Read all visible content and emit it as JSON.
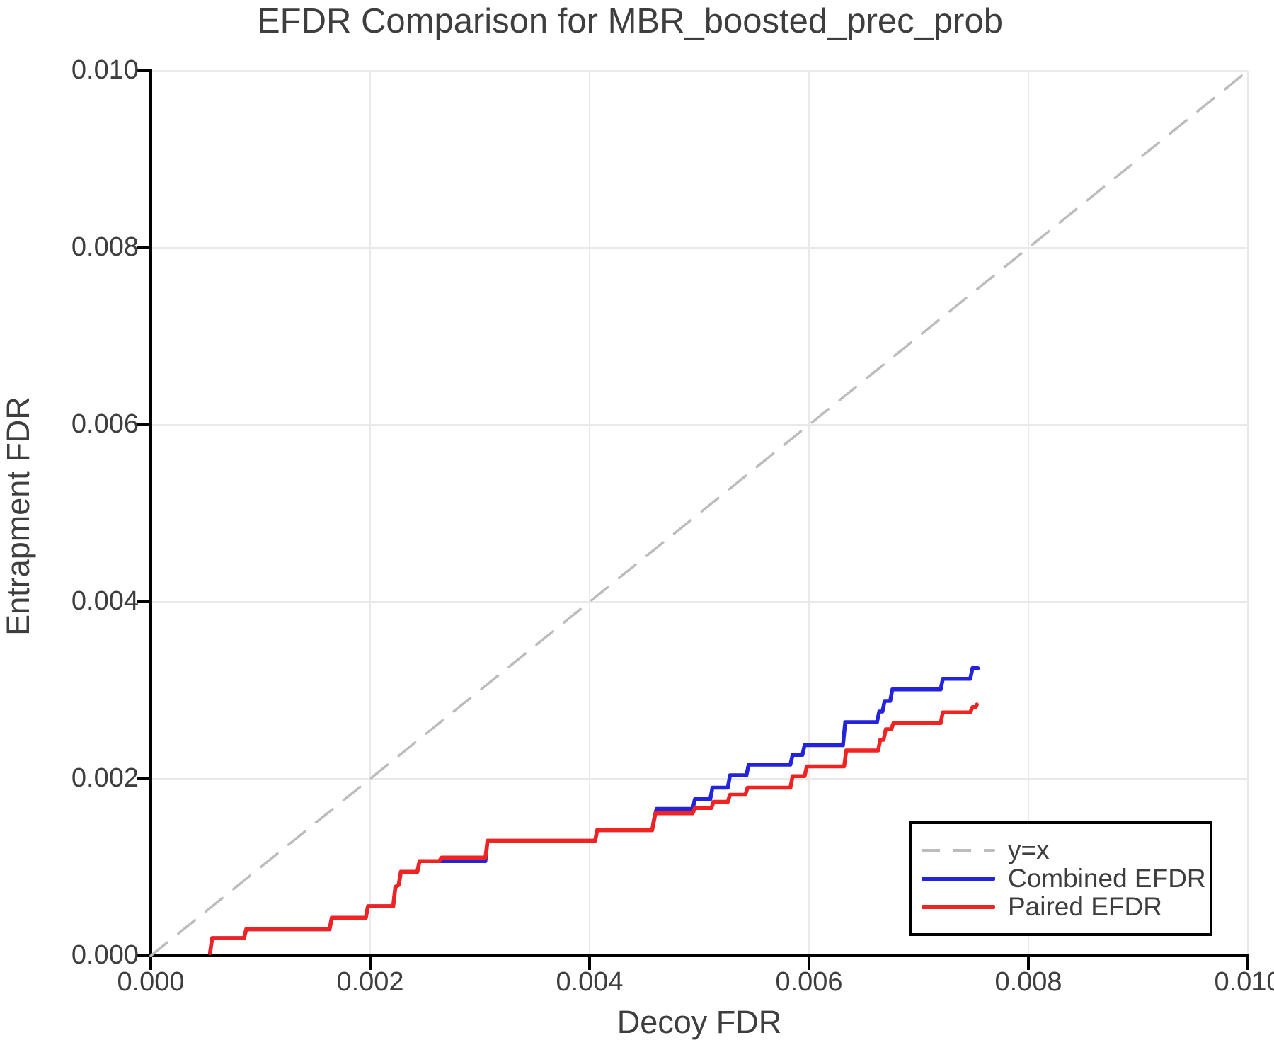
{
  "title": "EFDR Comparison for MBR_boosted_prec_prob",
  "colors": {
    "combined": "#2323dc",
    "paired": "#f02323",
    "identity": "#bcbcbc",
    "grid": "#e9e9e9",
    "axis": "#000000",
    "text": "#3e3e3e"
  },
  "chart_data": {
    "type": "line",
    "title": "EFDR Comparison for MBR_boosted_prec_prob",
    "xlabel": "Decoy FDR",
    "ylabel": "Entrapment FDR",
    "xlim": [
      0.0,
      0.01
    ],
    "ylim": [
      0.0,
      0.01
    ],
    "x_ticks": {
      "values": [
        0.0,
        0.002,
        0.004,
        0.006,
        0.008,
        0.01
      ],
      "labels": [
        "0.000",
        "0.002",
        "0.004",
        "0.006",
        "0.008",
        "0.010"
      ]
    },
    "y_ticks": {
      "values": [
        0.0,
        0.002,
        0.004,
        0.006,
        0.008,
        0.01
      ],
      "labels": [
        "0.000",
        "0.002",
        "0.004",
        "0.006",
        "0.008",
        "0.010"
      ]
    },
    "grid": true,
    "legend": {
      "position": "lower right",
      "entries": [
        {
          "label": "y=x",
          "color": "#bcbcbc",
          "style": "dashed",
          "series": "identity"
        },
        {
          "label": "Combined EFDR",
          "color": "#2323dc",
          "style": "solid",
          "series": "combined_efdr"
        },
        {
          "label": "Paired EFDR",
          "color": "#f02323",
          "style": "solid",
          "series": "paired_efdr"
        }
      ]
    },
    "series": [
      {
        "name": "y=x",
        "id": "identity",
        "color": "#bcbcbc",
        "style": "dashed",
        "width": 3.5,
        "points": [
          [
            0.0,
            0.0
          ],
          [
            0.01,
            0.01
          ]
        ]
      },
      {
        "name": "Combined EFDR",
        "id": "combined_efdr",
        "color": "#2323dc",
        "style": "solid",
        "width": 5.5,
        "points": [
          [
            0.00054,
            3e-05
          ],
          [
            0.00056,
            0.0002
          ],
          [
            0.00085,
            0.0002
          ],
          [
            0.00087,
            0.0003
          ],
          [
            0.00163,
            0.0003
          ],
          [
            0.00165,
            0.00043
          ],
          [
            0.00196,
            0.00043
          ],
          [
            0.00198,
            0.00056
          ],
          [
            0.00221,
            0.00056
          ],
          [
            0.00223,
            0.00078
          ],
          [
            0.00226,
            0.0008
          ],
          [
            0.00228,
            0.00095
          ],
          [
            0.00243,
            0.00095
          ],
          [
            0.00245,
            0.00107
          ],
          [
            0.00305,
            0.00107
          ],
          [
            0.00307,
            0.0013
          ],
          [
            0.00405,
            0.0013
          ],
          [
            0.00407,
            0.00142
          ],
          [
            0.00457,
            0.00142
          ],
          [
            0.00459,
            0.00156
          ],
          [
            0.00461,
            0.00166
          ],
          [
            0.00494,
            0.00166
          ],
          [
            0.00496,
            0.00177
          ],
          [
            0.0051,
            0.00177
          ],
          [
            0.00512,
            0.0019
          ],
          [
            0.00526,
            0.0019
          ],
          [
            0.00528,
            0.00204
          ],
          [
            0.00543,
            0.00204
          ],
          [
            0.00545,
            0.00216
          ],
          [
            0.00583,
            0.00216
          ],
          [
            0.00585,
            0.00227
          ],
          [
            0.00594,
            0.00227
          ],
          [
            0.00596,
            0.00238
          ],
          [
            0.00631,
            0.00238
          ],
          [
            0.00633,
            0.00264
          ],
          [
            0.00662,
            0.00264
          ],
          [
            0.00664,
            0.00276
          ],
          [
            0.00667,
            0.00276
          ],
          [
            0.00669,
            0.00288
          ],
          [
            0.00674,
            0.00288
          ],
          [
            0.00676,
            0.00301
          ],
          [
            0.0072,
            0.00301
          ],
          [
            0.00722,
            0.00313
          ],
          [
            0.00747,
            0.00313
          ],
          [
            0.00749,
            0.00325
          ],
          [
            0.00754,
            0.00325
          ]
        ]
      },
      {
        "name": "Paired EFDR",
        "id": "paired_efdr",
        "color": "#f02323",
        "style": "solid",
        "width": 5.5,
        "points": [
          [
            0.00054,
            3e-05
          ],
          [
            0.00056,
            0.0002
          ],
          [
            0.00085,
            0.0002
          ],
          [
            0.00087,
            0.0003
          ],
          [
            0.00163,
            0.0003
          ],
          [
            0.00165,
            0.00043
          ],
          [
            0.00196,
            0.00043
          ],
          [
            0.00198,
            0.00056
          ],
          [
            0.00221,
            0.00056
          ],
          [
            0.00223,
            0.00078
          ],
          [
            0.00226,
            0.0008
          ],
          [
            0.00228,
            0.00095
          ],
          [
            0.00243,
            0.00095
          ],
          [
            0.00245,
            0.00107
          ],
          [
            0.00263,
            0.00107
          ],
          [
            0.00265,
            0.00111
          ],
          [
            0.00305,
            0.00111
          ],
          [
            0.00307,
            0.0013
          ],
          [
            0.00405,
            0.0013
          ],
          [
            0.00407,
            0.00142
          ],
          [
            0.00457,
            0.00142
          ],
          [
            0.0046,
            0.00161
          ],
          [
            0.00494,
            0.00161
          ],
          [
            0.00496,
            0.00167
          ],
          [
            0.00511,
            0.00167
          ],
          [
            0.00513,
            0.00174
          ],
          [
            0.00526,
            0.00174
          ],
          [
            0.00528,
            0.00182
          ],
          [
            0.00542,
            0.00182
          ],
          [
            0.00544,
            0.0019
          ],
          [
            0.00583,
            0.0019
          ],
          [
            0.00585,
            0.00203
          ],
          [
            0.00596,
            0.00203
          ],
          [
            0.00598,
            0.00214
          ],
          [
            0.00632,
            0.00214
          ],
          [
            0.00634,
            0.00232
          ],
          [
            0.00663,
            0.00232
          ],
          [
            0.00665,
            0.00244
          ],
          [
            0.00668,
            0.00244
          ],
          [
            0.0067,
            0.00256
          ],
          [
            0.00675,
            0.00256
          ],
          [
            0.00677,
            0.00263
          ],
          [
            0.0072,
            0.00263
          ],
          [
            0.00722,
            0.00275
          ],
          [
            0.00747,
            0.00275
          ],
          [
            0.00749,
            0.00281
          ],
          [
            0.00752,
            0.00281
          ],
          [
            0.00753,
            0.00284
          ]
        ]
      }
    ]
  }
}
